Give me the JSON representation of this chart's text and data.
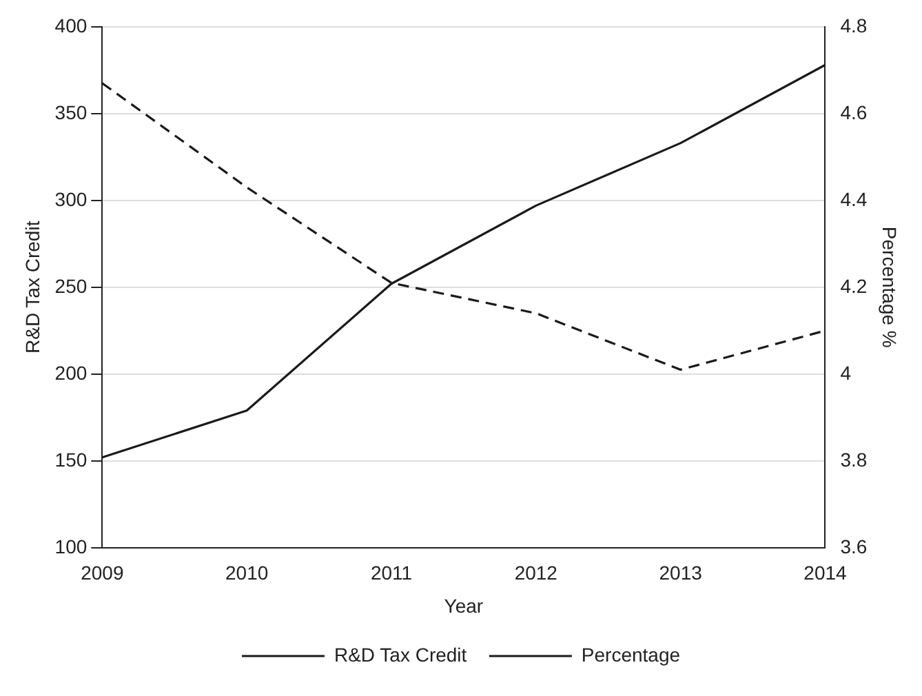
{
  "chart_data": {
    "type": "line",
    "xlabel": "Year",
    "ylabel": "R&D Tax Credit",
    "y2label": "Percentage %",
    "categories": [
      "2009",
      "2010",
      "2011",
      "2012",
      "2013",
      "2014"
    ],
    "series": [
      {
        "name": "R&D Tax Credit",
        "color": "#1a1a1a",
        "line_style": "solid",
        "values": [
          152,
          179,
          252,
          297,
          333,
          378
        ]
      },
      {
        "name": "Percentage",
        "color": "#1a1a1a",
        "line_style": "dashed",
        "axis": "y2",
        "values": [
          4.67,
          4.43,
          4.21,
          4.14,
          4.01,
          4.1
        ]
      }
    ],
    "ylim": [
      100,
      400
    ],
    "yticks": [
      100,
      150,
      200,
      250,
      300,
      350,
      400
    ],
    "y2lim": [
      3.6,
      4.8
    ],
    "y2ticks": [
      3.6,
      3.8,
      4,
      4.2,
      4.4,
      4.6,
      4.8
    ],
    "grid": "y",
    "legend": "bottom",
    "marker": "none"
  }
}
